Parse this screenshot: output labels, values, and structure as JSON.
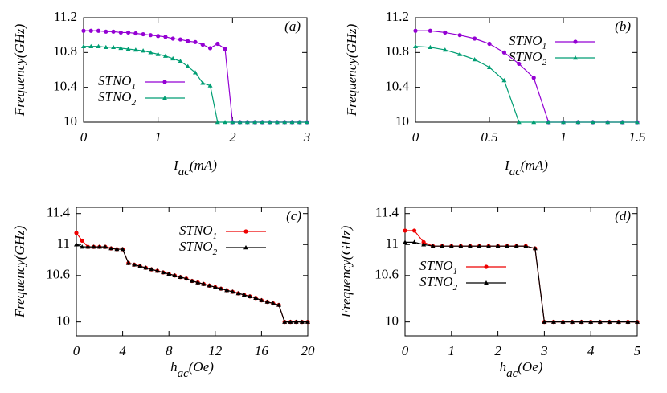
{
  "chart_data": [
    {
      "type": "line",
      "label": "(a)",
      "ylabel": "Frequency(GHz)",
      "xlabel": [
        "I",
        "ac",
        "(mA)"
      ],
      "x": [
        0,
        0.1,
        0.2,
        0.3,
        0.4,
        0.5,
        0.6,
        0.7,
        0.8,
        0.9,
        1.0,
        1.1,
        1.2,
        1.3,
        1.4,
        1.5,
        1.6,
        1.7,
        1.8,
        1.9,
        2.0,
        2.1,
        2.2,
        2.3,
        2.4,
        2.5,
        2.6,
        2.7,
        2.8,
        2.9,
        3.0
      ],
      "series": [
        {
          "name": [
            "STNO",
            "1"
          ],
          "color": "#9400d3",
          "marker": "circle",
          "values": [
            11.05,
            11.05,
            11.05,
            11.04,
            11.04,
            11.03,
            11.03,
            11.02,
            11.01,
            11.0,
            10.99,
            10.98,
            10.96,
            10.95,
            10.93,
            10.92,
            10.89,
            10.85,
            10.9,
            10.84,
            10,
            10,
            10,
            10,
            10,
            10,
            10,
            10,
            10,
            10,
            10
          ]
        },
        {
          "name": [
            "STNO",
            "2"
          ],
          "color": "#009e73",
          "marker": "triangle",
          "values": [
            10.87,
            10.87,
            10.87,
            10.86,
            10.86,
            10.85,
            10.84,
            10.83,
            10.82,
            10.8,
            10.78,
            10.76,
            10.73,
            10.7,
            10.64,
            10.57,
            10.45,
            10.42,
            10,
            10,
            10,
            10,
            10,
            10,
            10,
            10,
            10,
            10,
            10,
            10,
            10
          ]
        }
      ],
      "xlim": [
        0,
        3
      ],
      "ylim": [
        10,
        11.2
      ],
      "xticks": [
        0,
        1,
        2,
        3
      ],
      "yticks": [
        10,
        10.4,
        10.8,
        11.2
      ],
      "legend": "lower left"
    },
    {
      "type": "line",
      "label": "(b)",
      "ylabel": "Frequency(GHz)",
      "xlabel": [
        "I",
        "ac",
        "(mA)"
      ],
      "x": [
        0,
        0.1,
        0.2,
        0.3,
        0.4,
        0.5,
        0.6,
        0.7,
        0.8,
        0.9,
        1.0,
        1.1,
        1.2,
        1.3,
        1.4,
        1.5
      ],
      "series": [
        {
          "name": [
            "STNO",
            "1"
          ],
          "color": "#9400d3",
          "marker": "circle",
          "values": [
            11.05,
            11.05,
            11.03,
            11.0,
            10.96,
            10.9,
            10.8,
            10.67,
            10.51,
            10,
            10,
            10,
            10,
            10,
            10,
            10
          ]
        },
        {
          "name": [
            "STNO",
            "2"
          ],
          "color": "#009e73",
          "marker": "triangle",
          "values": [
            10.87,
            10.86,
            10.83,
            10.78,
            10.72,
            10.63,
            10.48,
            10,
            10,
            10,
            10,
            10,
            10,
            10,
            10,
            10
          ]
        }
      ],
      "xlim": [
        0,
        1.5
      ],
      "ylim": [
        10,
        11.2
      ],
      "xticks": [
        0,
        0.5,
        1,
        1.5
      ],
      "yticks": [
        10,
        10.4,
        10.8,
        11.2
      ],
      "legend": "upper right"
    },
    {
      "type": "line",
      "label": "(c)",
      "ylabel": "Frequency(GHz)",
      "xlabel": [
        "h",
        "ac",
        "(Oe)"
      ],
      "x": [
        0,
        0.5,
        1,
        1.5,
        2,
        2.5,
        3,
        3.5,
        4,
        4.5,
        5,
        5.5,
        6,
        6.5,
        7,
        7.5,
        8,
        8.5,
        9,
        9.5,
        10,
        10.5,
        11,
        11.5,
        12,
        12.5,
        13,
        13.5,
        14,
        14.5,
        15,
        15.5,
        16,
        16.5,
        17,
        17.5,
        18,
        18.5,
        19,
        19.5,
        20
      ],
      "series": [
        {
          "name": [
            "STNO",
            "1"
          ],
          "color": "#ee0000",
          "marker": "circle",
          "values": [
            11.15,
            11.05,
            10.97,
            10.97,
            10.97,
            10.97,
            10.95,
            10.94,
            10.94,
            10.76,
            10.74,
            10.72,
            10.7,
            10.68,
            10.66,
            10.64,
            10.62,
            10.6,
            10.58,
            10.56,
            10.53,
            10.51,
            10.49,
            10.47,
            10.45,
            10.43,
            10.41,
            10.39,
            10.37,
            10.35,
            10.33,
            10.31,
            10.28,
            10.26,
            10.24,
            10.22,
            10,
            10,
            10,
            10,
            10
          ]
        },
        {
          "name": [
            "STNO",
            "2"
          ],
          "color": "#000000",
          "marker": "triangle",
          "values": [
            11.0,
            10.97,
            10.97,
            10.97,
            10.97,
            10.97,
            10.95,
            10.94,
            10.94,
            10.76,
            10.74,
            10.72,
            10.7,
            10.68,
            10.66,
            10.64,
            10.62,
            10.6,
            10.58,
            10.56,
            10.53,
            10.51,
            10.49,
            10.47,
            10.45,
            10.43,
            10.41,
            10.39,
            10.37,
            10.35,
            10.33,
            10.31,
            10.28,
            10.26,
            10.24,
            10.22,
            10,
            10,
            10,
            10,
            10
          ]
        }
      ],
      "xlim": [
        0,
        20
      ],
      "ylim": [
        9.82,
        11.48
      ],
      "xticks": [
        0,
        4,
        8,
        12,
        16,
        20
      ],
      "yticks": [
        10,
        10.6,
        11,
        11.4
      ],
      "legend": "upper right"
    },
    {
      "type": "line",
      "label": "(d)",
      "ylabel": "Frequency(GHz)",
      "xlabel": [
        "h",
        "ac",
        "(Oe)"
      ],
      "x": [
        0,
        0.2,
        0.4,
        0.6,
        0.8,
        1.0,
        1.2,
        1.4,
        1.6,
        1.8,
        2.0,
        2.2,
        2.4,
        2.6,
        2.8,
        3.0,
        3.2,
        3.4,
        3.6,
        3.8,
        4.0,
        4.2,
        4.4,
        4.6,
        4.8,
        5.0
      ],
      "series": [
        {
          "name": [
            "STNO",
            "1"
          ],
          "color": "#ee0000",
          "marker": "circle",
          "values": [
            11.18,
            11.18,
            11.03,
            10.98,
            10.98,
            10.98,
            10.98,
            10.98,
            10.98,
            10.98,
            10.98,
            10.98,
            10.98,
            10.98,
            10.95,
            10,
            10,
            10,
            10,
            10,
            10,
            10,
            10,
            10,
            10,
            10
          ]
        },
        {
          "name": [
            "STNO",
            "2"
          ],
          "color": "#000000",
          "marker": "triangle",
          "values": [
            11.03,
            11.03,
            11.0,
            10.98,
            10.98,
            10.98,
            10.98,
            10.98,
            10.98,
            10.98,
            10.98,
            10.98,
            10.98,
            10.98,
            10.95,
            10,
            10,
            10,
            10,
            10,
            10,
            10,
            10,
            10,
            10,
            10
          ]
        }
      ],
      "xlim": [
        0,
        5
      ],
      "ylim": [
        9.82,
        11.48
      ],
      "xticks": [
        0,
        1,
        2,
        3,
        4,
        5
      ],
      "yticks": [
        10,
        10.6,
        11,
        11.4
      ],
      "legend": "center left"
    }
  ]
}
